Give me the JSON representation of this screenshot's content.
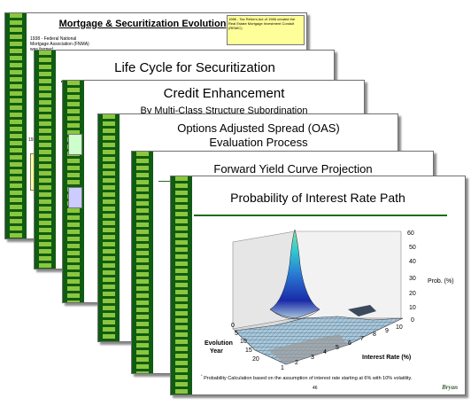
{
  "slides": [
    {
      "title": "Mortgage  & Securitization Evolution",
      "note_left": "1938 - Federal National Mortgage Association (FNMA) was formed",
      "note_right": "1986 - Tax Reform Act of 1986 created the Real Estate Mortgage Investment Conduit (REMIC)",
      "year_label": "1930"
    },
    {
      "title": "Life Cycle for Securitization"
    },
    {
      "title": "Credit Enhancement",
      "subtitle": "By Multi-Class Structure Subordination"
    },
    {
      "title": "Options Adjusted Spread (OAS)",
      "subtitle": "Evaluation Process"
    },
    {
      "title": "Forward Yield Curve Projection"
    },
    {
      "title": "Probability of Interest Rate Path",
      "footnote": "Probability Calculation based on the assumption of interest rate starting at 6% with 10% volatility.",
      "footnote_mark": "*",
      "page_number": "46",
      "logo_text": "Bryan"
    }
  ],
  "chart_data": {
    "type": "surface",
    "zlabel": "Prob. (%)",
    "xlabel": "Interest Rate (%)",
    "ylabel": "Evolution Year",
    "z_ticks": [
      "0",
      "10",
      "20",
      "30",
      "40",
      "50",
      "60"
    ],
    "x_ticks": [
      "1",
      "2",
      "3",
      "4",
      "5",
      "6",
      "7",
      "8",
      "9",
      "10"
    ],
    "y_ticks": [
      "20",
      "15",
      "10",
      "5",
      "0"
    ],
    "zlim": [
      0,
      60
    ],
    "peak": {
      "interest_rate": 6,
      "evolution_year": 0,
      "prob": 60
    }
  }
}
